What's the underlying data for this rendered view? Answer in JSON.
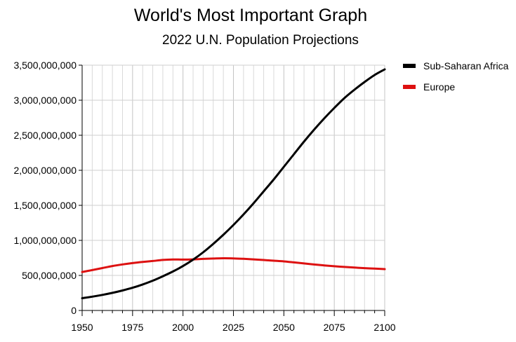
{
  "chart_data": {
    "type": "line",
    "title": "World's Most Important Graph",
    "subtitle": "2022 U.N. Population Projections",
    "xlabel": "",
    "ylabel": "",
    "xlim": [
      1950,
      2100
    ],
    "ylim": [
      0,
      3500000000
    ],
    "x_ticks": [
      1950,
      1975,
      2000,
      2025,
      2050,
      2075,
      2100
    ],
    "x_tick_labels": [
      "1950",
      "1975",
      "2000",
      "2025",
      "2050",
      "2075",
      "2100"
    ],
    "y_ticks": [
      0,
      500000000,
      1000000000,
      1500000000,
      2000000000,
      2500000000,
      3000000000,
      3500000000
    ],
    "y_tick_labels": [
      "0",
      "500,000,000",
      "1,000,000,000",
      "1,500,000,000",
      "2,000,000,000",
      "2,500,000,000",
      "3,000,000,000",
      "3,500,000,000"
    ],
    "grid": true,
    "grid_minor_x_step": 5,
    "legend_position": "right",
    "x": [
      1950,
      1955,
      1960,
      1965,
      1970,
      1975,
      1980,
      1985,
      1990,
      1995,
      2000,
      2005,
      2010,
      2015,
      2020,
      2025,
      2030,
      2035,
      2040,
      2045,
      2050,
      2055,
      2060,
      2065,
      2070,
      2075,
      2080,
      2085,
      2090,
      2095,
      2100
    ],
    "series": [
      {
        "name": "Sub-Saharan Africa",
        "color": "#000000",
        "values": [
          175000000,
          197000000,
          222000000,
          251000000,
          285000000,
          324000000,
          371000000,
          425000000,
          488000000,
          556000000,
          634000000,
          725000000,
          830000000,
          950000000,
          1080000000,
          1220000000,
          1370000000,
          1530000000,
          1700000000,
          1870000000,
          2050000000,
          2230000000,
          2410000000,
          2580000000,
          2740000000,
          2890000000,
          3030000000,
          3150000000,
          3260000000,
          3360000000,
          3440000000
        ]
      },
      {
        "name": "Europe",
        "color": "#dd1111",
        "values": [
          549000000,
          576000000,
          605000000,
          634000000,
          657000000,
          676000000,
          692000000,
          706000000,
          721000000,
          728000000,
          726000000,
          729000000,
          736000000,
          741000000,
          745000000,
          743000000,
          737000000,
          729000000,
          720000000,
          710000000,
          700000000,
          686000000,
          671000000,
          656000000,
          643000000,
          631000000,
          621000000,
          612000000,
          604000000,
          597000000,
          590000000
        ]
      }
    ]
  }
}
